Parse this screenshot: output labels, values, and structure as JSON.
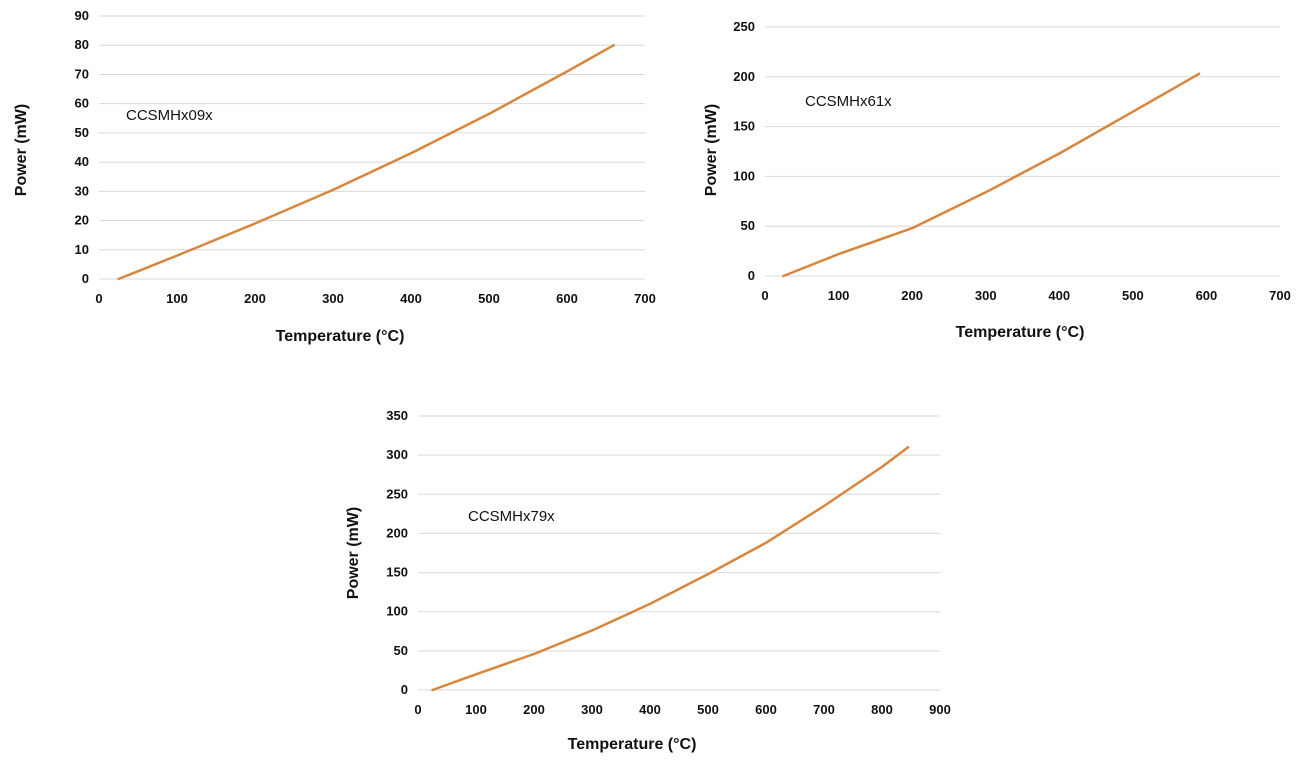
{
  "chart_data": [
    {
      "type": "line",
      "xlabel": "Temperature (°C)",
      "ylabel": "Power (mW)",
      "annotation": "CCSMHx09x",
      "xlim": [
        0,
        700
      ],
      "ylim": [
        0,
        90
      ],
      "x_ticks": [
        0,
        100,
        200,
        300,
        400,
        500,
        600,
        700
      ],
      "y_ticks": [
        0,
        10,
        20,
        30,
        40,
        50,
        60,
        70,
        80,
        90
      ],
      "grid": "horizontal",
      "color": "#D9863D",
      "series": [
        {
          "x": [
            25,
            100,
            200,
            300,
            400,
            500,
            600,
            660
          ],
          "y": [
            0,
            8,
            19,
            30.5,
            43,
            56.5,
            71,
            80
          ]
        }
      ]
    },
    {
      "type": "line",
      "xlabel": "Temperature (°C)",
      "ylabel": "Power (mW)",
      "annotation": "CCSMHx61x",
      "xlim": [
        0,
        700
      ],
      "ylim": [
        0,
        250
      ],
      "x_ticks": [
        0,
        100,
        200,
        300,
        400,
        500,
        600,
        700
      ],
      "y_ticks": [
        0,
        50,
        100,
        150,
        200,
        250
      ],
      "grid": "horizontal",
      "color": "#D9863D",
      "series": [
        {
          "x": [
            25,
            100,
            200,
            300,
            400,
            500,
            590
          ],
          "y": [
            0,
            22,
            48,
            84,
            123,
            165,
            203
          ]
        }
      ]
    },
    {
      "type": "line",
      "xlabel": "Temperature (°C)",
      "ylabel": "Power (mW)",
      "annotation": "CCSMHx79x",
      "xlim": [
        0,
        900
      ],
      "ylim": [
        0,
        350
      ],
      "x_ticks": [
        0,
        100,
        200,
        300,
        400,
        500,
        600,
        700,
        800,
        900
      ],
      "y_ticks": [
        0,
        50,
        100,
        150,
        200,
        250,
        300,
        350
      ],
      "grid": "horizontal",
      "color": "#D9863D",
      "series": [
        {
          "x": [
            25,
            100,
            200,
            300,
            400,
            500,
            600,
            700,
            800,
            845
          ],
          "y": [
            0,
            20,
            46,
            76,
            110,
            148,
            188,
            235,
            285,
            310
          ]
        }
      ]
    }
  ]
}
